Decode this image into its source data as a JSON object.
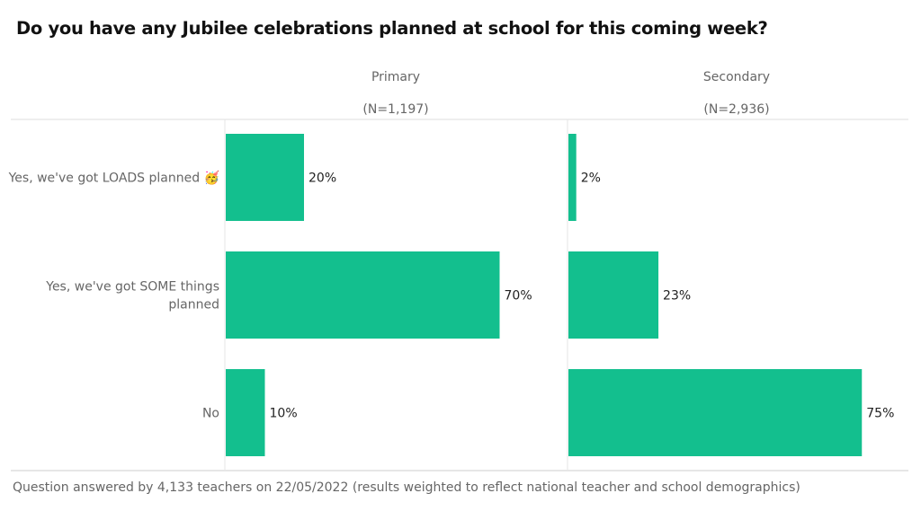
{
  "title": "Do you have any Jubilee celebrations planned at school for this coming week?",
  "footnote": "Question answered by 4,133 teachers on 22/05/2022 (results weighted to reflect national teacher and school demographics)",
  "chart_data": {
    "type": "bar",
    "orientation": "horizontal",
    "bar_color": "#13BF8E",
    "categories": [
      [
        "Yes, we've got LOADS planned 🥳"
      ],
      [
        "Yes, we've got SOME things",
        "planned"
      ],
      [
        "No"
      ]
    ],
    "panels": [
      {
        "name": "Primary",
        "n_label": "(N=1,197)",
        "values": [
          20,
          70,
          10
        ],
        "labels": [
          "20%",
          "70%",
          "10%"
        ]
      },
      {
        "name": "Secondary",
        "n_label": "(N=2,936)",
        "values": [
          2,
          23,
          75
        ],
        "labels": [
          "2%",
          "23%",
          "75%"
        ]
      }
    ],
    "xlim": [
      0,
      80
    ],
    "grid": false
  }
}
